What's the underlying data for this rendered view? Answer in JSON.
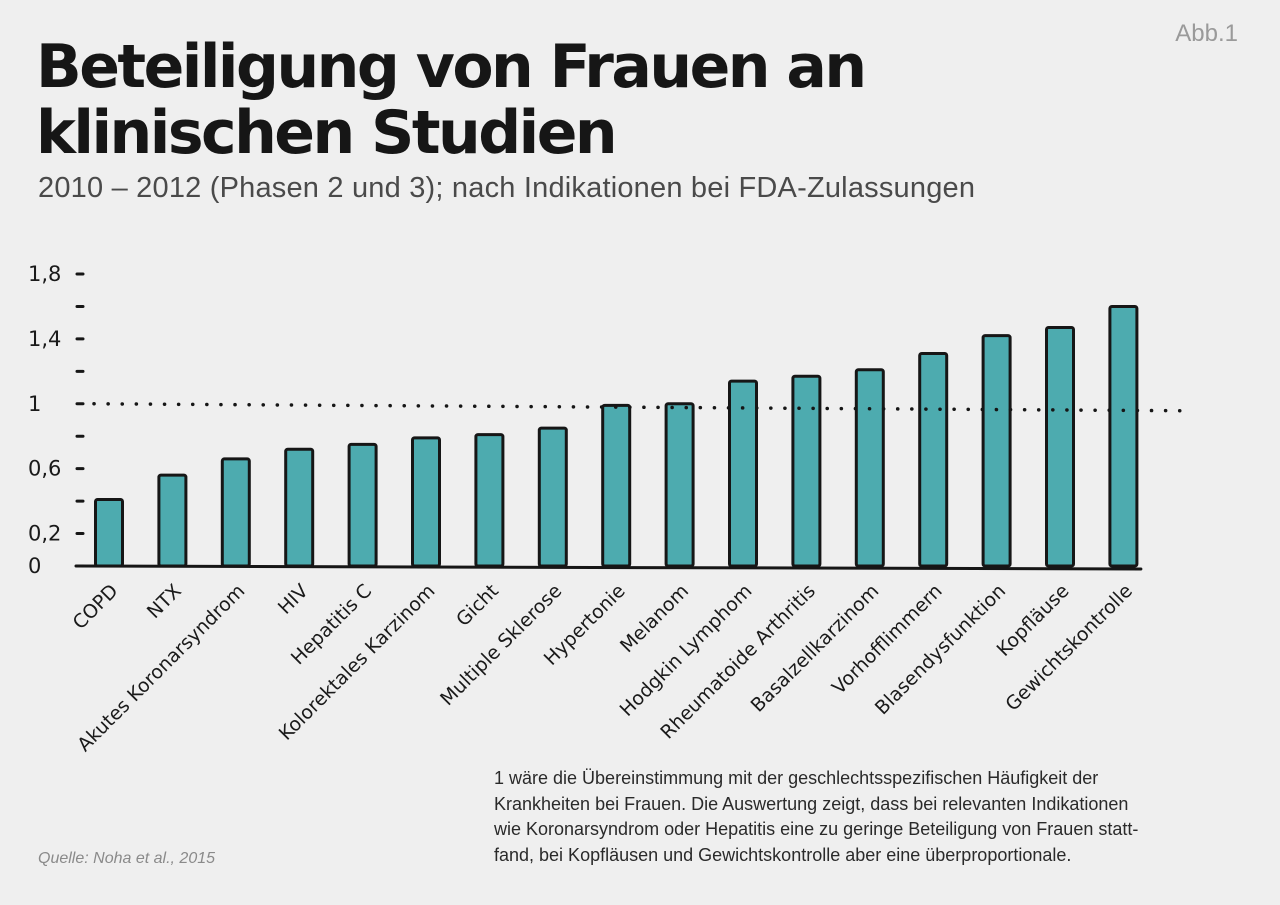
{
  "header": {
    "title_lines": [
      "Beteiligung von Frauen an",
      "klinischen Studien"
    ],
    "subtitle": "2010 – 2012 (Phasen 2 und 3); nach Indikationen bei FDA-Zulassungen",
    "figure_label": "Abb.1"
  },
  "chart_data": {
    "type": "bar",
    "title": "Beteiligung von Frauen an klinischen Studien",
    "subtitle": "2010 – 2012 (Phasen 2 und 3); nach Indikationen bei FDA-Zulassungen",
    "xlabel": "",
    "ylabel": "",
    "categories": [
      "COPD",
      "NTX",
      "Akutes Koronarsyndrom",
      "HIV",
      "Hepatitis C",
      "Kolorektales Karzinom",
      "Gicht",
      "Multiple Sklerose",
      "Hypertonie",
      "Melanom",
      "Hodgkin Lymphom",
      "Rheumatoide Arthritis",
      "Basalzellkarzinom",
      "Vorhofflimmern",
      "Blasendysfunktion",
      "Kopfläuse",
      "Gewichtskontrolle"
    ],
    "values": [
      0.41,
      0.56,
      0.66,
      0.72,
      0.75,
      0.79,
      0.81,
      0.85,
      0.99,
      1.0,
      1.14,
      1.17,
      1.21,
      1.31,
      1.42,
      1.47,
      1.6
    ],
    "ylim": [
      0,
      1.8
    ],
    "yticks": [
      0,
      0.2,
      0.4,
      0.6,
      0.8,
      1,
      1.2,
      1.4,
      1.6,
      1.8
    ],
    "ytick_labels": [
      "0",
      "0,2",
      "",
      "0,6",
      "",
      "1",
      "",
      "1,4",
      "",
      "1,8"
    ],
    "reference_line": 1,
    "bar_color": "#4dabaf",
    "outline_color": "#161616",
    "grid": false
  },
  "footnote": {
    "lines": [
      "1 wäre die Übereinstimmung mit der geschlechtsspezifischen Häufigkeit der",
      "Krankheiten bei Frauen. Die Auswertung zeigt, dass bei relevanten Indikationen",
      "wie Koronarsyndrom oder Hepatitis eine zu geringe Beteiligung von Frauen statt-",
      "fand, bei Kopfläusen und Gewichtskontrolle aber eine überproportionale."
    ]
  },
  "source": "Quelle: Noha et al., 2015"
}
